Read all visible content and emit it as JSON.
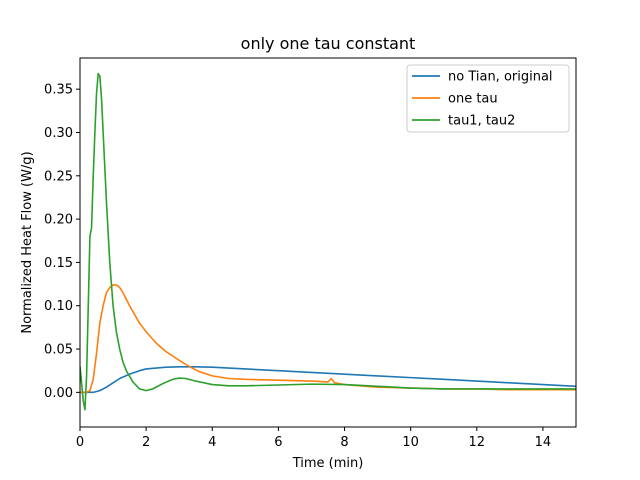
{
  "chart_data": {
    "type": "line",
    "title": "only one tau constant",
    "xlabel": "Time (min)",
    "ylabel": "Normalized Heat Flow (W/g)",
    "xlim": [
      0,
      15
    ],
    "ylim": [
      -0.04,
      0.386
    ],
    "xticks": [
      0,
      2,
      4,
      6,
      8,
      10,
      12,
      14
    ],
    "yticks": [
      0.0,
      0.05,
      0.1,
      0.15,
      0.2,
      0.25,
      0.3,
      0.35
    ],
    "xtick_labels": [
      "0",
      "2",
      "4",
      "6",
      "8",
      "10",
      "12",
      "14"
    ],
    "ytick_labels": [
      "0.00",
      "0.05",
      "0.10",
      "0.15",
      "0.20",
      "0.25",
      "0.30",
      "0.35"
    ],
    "grid": false,
    "legend_position": "top-right",
    "series": [
      {
        "name": "no Tian, original",
        "color": "#1f77b4",
        "x": [
          0,
          0.2,
          0.4,
          0.6,
          0.8,
          1.0,
          1.2,
          1.5,
          1.8,
          2.0,
          2.3,
          2.6,
          3.0,
          3.5,
          4.0,
          5.0,
          6.0,
          7.0,
          8.0,
          9.0,
          10.0,
          11.0,
          12.0,
          13.0,
          14.0,
          15.0
        ],
        "y": [
          0.0,
          0.0,
          0.0,
          0.002,
          0.006,
          0.011,
          0.016,
          0.021,
          0.025,
          0.027,
          0.028,
          0.029,
          0.0295,
          0.0295,
          0.029,
          0.027,
          0.025,
          0.023,
          0.021,
          0.019,
          0.017,
          0.015,
          0.013,
          0.011,
          0.009,
          0.007
        ]
      },
      {
        "name": "one tau",
        "color": "#ff7f0e",
        "x": [
          0,
          0.1,
          0.2,
          0.3,
          0.4,
          0.5,
          0.6,
          0.7,
          0.8,
          0.9,
          1.0,
          1.1,
          1.2,
          1.3,
          1.5,
          1.8,
          2.0,
          2.3,
          2.6,
          3.0,
          3.3,
          3.6,
          4.0,
          4.5,
          5.0,
          6.0,
          7.0,
          7.5,
          7.6,
          7.7,
          8.0,
          9.0,
          10.0,
          11.0,
          12.0,
          13.0,
          14.0,
          15.0
        ],
        "y": [
          0.0,
          0.0,
          0.0,
          0.002,
          0.015,
          0.045,
          0.08,
          0.1,
          0.115,
          0.121,
          0.124,
          0.124,
          0.121,
          0.115,
          0.1,
          0.08,
          0.07,
          0.057,
          0.047,
          0.037,
          0.03,
          0.024,
          0.019,
          0.016,
          0.015,
          0.014,
          0.013,
          0.012,
          0.016,
          0.011,
          0.009,
          0.006,
          0.005,
          0.004,
          0.004,
          0.003,
          0.003,
          0.003
        ]
      },
      {
        "name": "tau1, tau2",
        "color": "#2ca02c",
        "x": [
          0,
          0.05,
          0.1,
          0.15,
          0.2,
          0.25,
          0.3,
          0.35,
          0.4,
          0.45,
          0.5,
          0.55,
          0.6,
          0.65,
          0.7,
          0.8,
          0.9,
          1.0,
          1.1,
          1.2,
          1.3,
          1.4,
          1.6,
          1.8,
          2.0,
          2.2,
          2.5,
          2.8,
          3.0,
          3.2,
          3.5,
          4.0,
          4.5,
          5.0,
          6.0,
          7.0,
          8.0,
          9.0,
          10.0,
          11.0,
          12.0,
          13.0,
          14.0,
          15.0
        ],
        "y": [
          0.03,
          0.01,
          -0.01,
          -0.02,
          0.02,
          0.1,
          0.18,
          0.19,
          0.25,
          0.3,
          0.345,
          0.368,
          0.365,
          0.34,
          0.3,
          0.22,
          0.15,
          0.1,
          0.07,
          0.05,
          0.035,
          0.025,
          0.012,
          0.004,
          0.002,
          0.004,
          0.01,
          0.015,
          0.0165,
          0.016,
          0.013,
          0.009,
          0.0075,
          0.0075,
          0.0085,
          0.0095,
          0.009,
          0.007,
          0.005,
          0.004,
          0.004,
          0.004,
          0.004,
          0.004
        ]
      }
    ]
  }
}
